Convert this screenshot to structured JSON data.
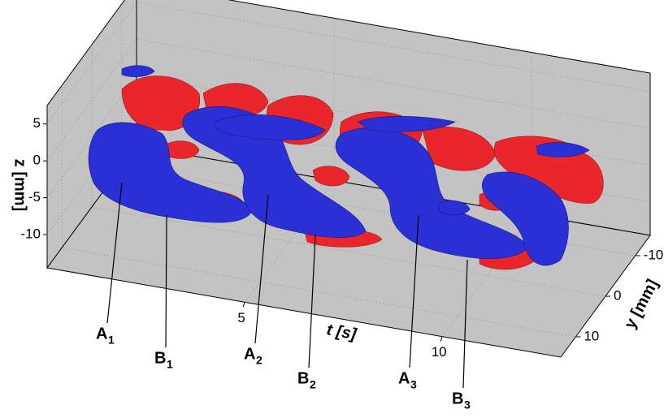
{
  "chart_data": {
    "type": "isosurface3d",
    "xlabel": "t [s]",
    "ylabel": "y [mm]",
    "zlabel": "z [mm]",
    "xlim": [
      0,
      13
    ],
    "xticks": [
      5,
      10
    ],
    "ylim": [
      -15,
      15
    ],
    "yticks": [
      -10,
      0,
      10
    ],
    "zlim": [
      -14.5,
      7.5
    ],
    "zticks": [
      5,
      0,
      -5,
      -10
    ],
    "colors": {
      "positive": "#e8262b",
      "negative": "#2b2fd6",
      "wall": "#c3c3c3"
    },
    "annotations": [
      {
        "label": "A",
        "subscript": "1"
      },
      {
        "label": "B",
        "subscript": "1"
      },
      {
        "label": "A",
        "subscript": "2"
      },
      {
        "label": "B",
        "subscript": "2"
      },
      {
        "label": "A",
        "subscript": "3"
      },
      {
        "label": "B",
        "subscript": "3"
      }
    ]
  }
}
